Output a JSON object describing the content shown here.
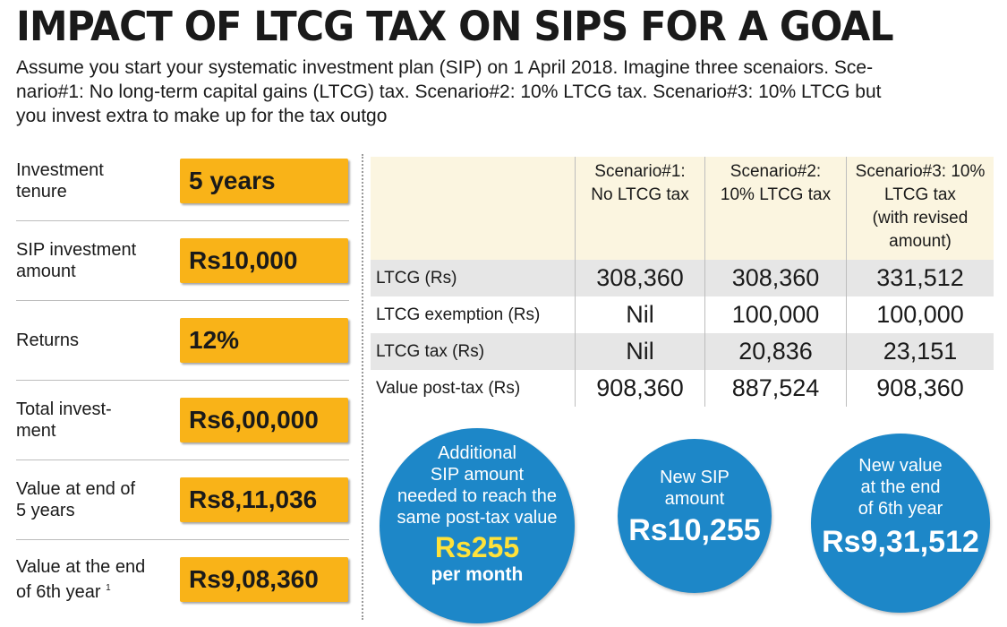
{
  "header": {
    "title": "IMPACT OF LTCG TAX ON SIPS FOR A GOAL",
    "subtitle_lines": [
      "Assume you start your systematic investment plan (SIP) on 1 April 2018. Imagine three scenaiors. Sce-",
      "nario#1: No long-term capital gains (LTCG) tax. Scenario#2: 10% LTCG tax. Scenario#3: 10% LTCG but",
      "you invest extra to make up for the tax outgo"
    ]
  },
  "params": [
    {
      "label_lines": [
        "Investment",
        "tenure"
      ],
      "value": "5 years"
    },
    {
      "label_lines": [
        "SIP investment",
        "amount"
      ],
      "value": "Rs10,000"
    },
    {
      "label_lines": [
        "Returns"
      ],
      "value": "12%"
    },
    {
      "label_lines": [
        "Total invest-",
        "ment"
      ],
      "value": "Rs6,00,000"
    },
    {
      "label_lines": [
        "Value at end of",
        "5 years"
      ],
      "value": "Rs8,11,036"
    },
    {
      "label_lines": [
        "Value at the end",
        "of 6th year"
      ],
      "label_sup": "1",
      "value": "Rs9,08,360"
    }
  ],
  "table": {
    "headers": [
      [
        "Scenario#1:",
        "No LTCG tax"
      ],
      [
        "Scenario#2:",
        "10% LTCG tax"
      ],
      [
        "Scenario#3: 10%",
        "LTCG tax",
        "(with revised",
        "amount)"
      ]
    ],
    "rows": [
      {
        "label": "LTCG (Rs)",
        "values": [
          "308,360",
          "308,360",
          "331,512"
        ]
      },
      {
        "label": "LTCG exemption (Rs)",
        "values": [
          "Nil",
          "100,000",
          "100,000"
        ]
      },
      {
        "label": "LTCG tax (Rs)",
        "values": [
          "Nil",
          "20,836",
          "23,151"
        ]
      },
      {
        "label": "Value post-tax (Rs)",
        "values": [
          "908,360",
          "887,524",
          "908,360"
        ]
      }
    ]
  },
  "circles": {
    "additional": {
      "lines": [
        "Additional",
        "SIP amount",
        "needed to reach the",
        "same post-tax value"
      ],
      "amount": "Rs255",
      "unit": "per month"
    },
    "new_sip": {
      "lines": [
        "New SIP",
        "amount"
      ],
      "amount": "Rs10,255"
    },
    "new_value": {
      "lines": [
        "New value",
        "at the end",
        "of 6th year"
      ],
      "amount": "Rs9,31,512"
    }
  },
  "colors": {
    "highlight_box": "#f9b318",
    "circle_blue": "#1d87c8",
    "circle_highlight": "#ffe23a",
    "table_header_bg": "#fbf5e0",
    "row_shade": "#e6e6e6"
  }
}
